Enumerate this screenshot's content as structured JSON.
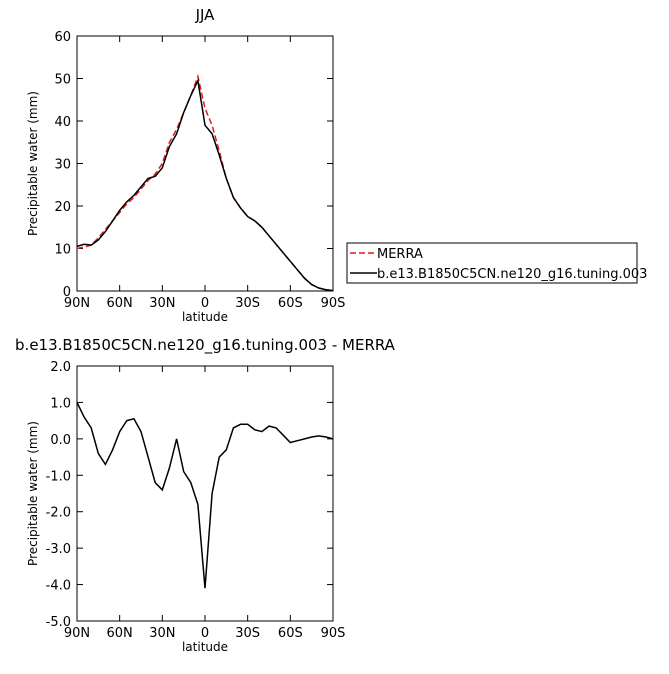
{
  "chart_data": [
    {
      "type": "line",
      "title": "JJA",
      "xlabel": "latitude",
      "ylabel": "Precipitable water (mm)",
      "x": [
        90,
        85,
        80,
        75,
        70,
        65,
        60,
        55,
        50,
        45,
        40,
        35,
        30,
        25,
        20,
        15,
        10,
        5,
        0,
        -5,
        -10,
        -15,
        -20,
        -25,
        -30,
        -35,
        -40,
        -45,
        -50,
        -55,
        -60,
        -65,
        -70,
        -75,
        -80,
        -85,
        -90
      ],
      "xlim": [
        90,
        -90
      ],
      "xticks": [
        {
          "value": 90,
          "label": "90N"
        },
        {
          "value": 60,
          "label": "60N"
        },
        {
          "value": 30,
          "label": "30N"
        },
        0,
        {
          "value": -30,
          "label": "30S"
        },
        {
          "value": -60,
          "label": "60S"
        },
        {
          "value": -90,
          "label": "90S"
        }
      ],
      "ylim": [
        0,
        60
      ],
      "yticks": [
        0,
        10,
        20,
        30,
        40,
        50,
        60
      ],
      "legend": "right",
      "series": [
        {
          "name": "MERRA",
          "color": "#e41a1c",
          "line_style": "dashed",
          "values": [
            10,
            10.3,
            10.8,
            12.5,
            14.5,
            16.5,
            18.5,
            20.5,
            22,
            24,
            26,
            27.5,
            30,
            35,
            38,
            42,
            46,
            50.5,
            43,
            39,
            33,
            26.5,
            22,
            19.5,
            17.5,
            16.5,
            15,
            13,
            11,
            9,
            7,
            5,
            3,
            1.5,
            0.7,
            0.3,
            0.1
          ]
        },
        {
          "name": "b.e13.B1850C5CN.ne120_g16.tuning.003",
          "color": "#000000",
          "line_style": "solid",
          "values": [
            10.5,
            11,
            10.8,
            12,
            14,
            16.5,
            19,
            21,
            22.5,
            24.5,
            26.5,
            27,
            29,
            34,
            37,
            42,
            46,
            49.5,
            39,
            37,
            32,
            26.5,
            22,
            19.5,
            17.5,
            16.5,
            15,
            13,
            11,
            9,
            7,
            5,
            3,
            1.5,
            0.7,
            0.3,
            0.1
          ]
        }
      ]
    },
    {
      "type": "line",
      "title": "b.e13.B1850C5CN.ne120_g16.tuning.003 - MERRA",
      "xlabel": "latitude",
      "ylabel": "Precipitable water (mm)",
      "x": [
        90,
        85,
        80,
        75,
        70,
        65,
        60,
        55,
        50,
        45,
        40,
        35,
        30,
        25,
        20,
        15,
        10,
        5,
        0,
        -5,
        -10,
        -15,
        -20,
        -25,
        -30,
        -35,
        -40,
        -45,
        -50,
        -55,
        -60,
        -65,
        -70,
        -75,
        -80,
        -85,
        -90
      ],
      "xlim": [
        90,
        -90
      ],
      "xticks": [
        {
          "value": 90,
          "label": "90N"
        },
        {
          "value": 60,
          "label": "60N"
        },
        {
          "value": 30,
          "label": "30N"
        },
        0,
        {
          "value": -30,
          "label": "30S"
        },
        {
          "value": -60,
          "label": "60S"
        },
        {
          "value": -90,
          "label": "90S"
        }
      ],
      "ylim": [
        -5,
        2
      ],
      "yticks": [
        {
          "value": -5,
          "label": "-5.0"
        },
        {
          "value": -4,
          "label": "-4.0"
        },
        {
          "value": -3,
          "label": "-3.0"
        },
        {
          "value": -2,
          "label": "-2.0"
        },
        {
          "value": -1,
          "label": "-1.0"
        },
        {
          "value": 0,
          "label": "0.0"
        },
        {
          "value": 1,
          "label": "1.0"
        },
        {
          "value": 2,
          "label": "2.0"
        }
      ],
      "series": [
        {
          "color": "#000000",
          "line_style": "solid",
          "values": [
            1.0,
            0.6,
            0.3,
            -0.4,
            -0.7,
            -0.3,
            0.2,
            0.5,
            0.55,
            0.2,
            -0.5,
            -1.2,
            -1.4,
            -0.8,
            0.0,
            -0.9,
            -1.2,
            -1.8,
            -4.1,
            -1.5,
            -0.5,
            -0.3,
            0.3,
            0.4,
            0.4,
            0.25,
            0.2,
            0.35,
            0.3,
            0.1,
            -0.1,
            -0.05,
            0.0,
            0.05,
            0.08,
            0.05,
            0.0
          ]
        }
      ]
    }
  ]
}
